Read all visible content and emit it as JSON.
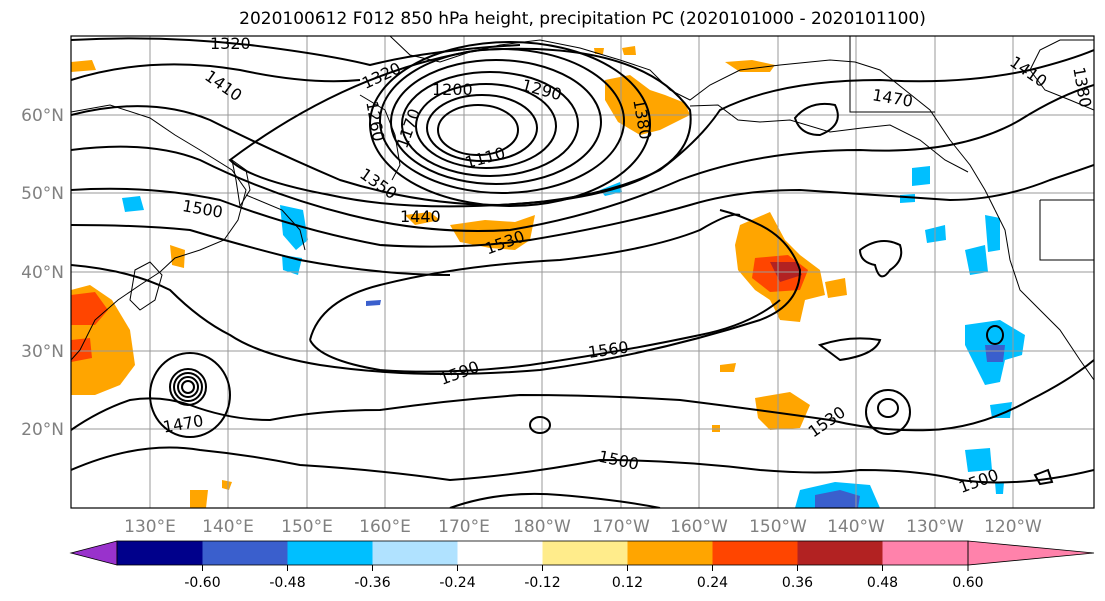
{
  "title": "2020100612 F012 850 hPa height, precipitation PC (2020101000 - 2020101100)",
  "lat_labels": [
    "60°N",
    "50°N",
    "40°N",
    "30°N",
    "20°N"
  ],
  "lon_labels": [
    "130°E",
    "140°E",
    "150°E",
    "160°E",
    "170°E",
    "180°W",
    "170°W",
    "160°W",
    "150°W",
    "140°W",
    "130°W",
    "120°W"
  ],
  "contour_labels": [
    "1320",
    "1410",
    "1320",
    "1200",
    "1290",
    "1260",
    "1170",
    "1110",
    "1380",
    "1470",
    "1410",
    "1380",
    "1350",
    "1500",
    "1440",
    "1530",
    "1590",
    "1560",
    "1470",
    "1530",
    "1500",
    "1500"
  ],
  "colorbar": {
    "colors": [
      "#9932CC",
      "#00008B",
      "#3A5FCD",
      "#00BFFF",
      "#B0E2FF",
      "#FFFFFF",
      "#FFEC8B",
      "#FFA500",
      "#FF4500",
      "#B22222",
      "#FF82AB"
    ],
    "tick_labels": [
      "-0.60",
      "-0.48",
      "-0.36",
      "-0.24",
      "-0.12",
      "0.12",
      "0.24",
      "0.36",
      "0.48",
      "0.60"
    ]
  }
}
